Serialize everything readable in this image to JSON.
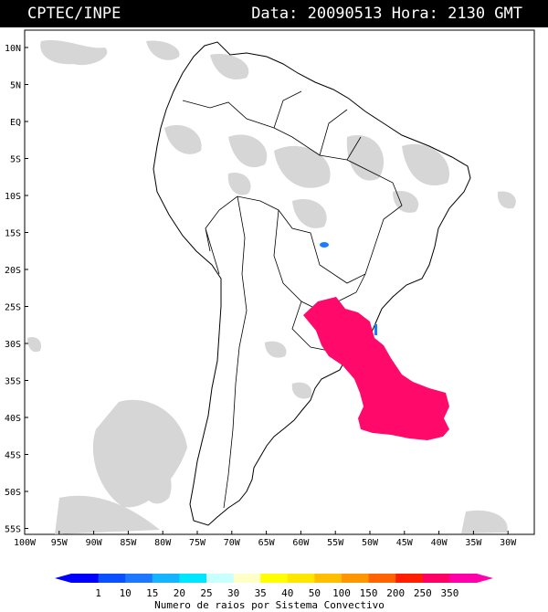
{
  "header": {
    "agency": "CPTEC/INPE",
    "datetime": "Data: 20090513 Hora: 2130 GMT"
  },
  "map": {
    "lat_labels": [
      "10N",
      "5N",
      "EQ",
      "5S",
      "10S",
      "15S",
      "20S",
      "25S",
      "30S",
      "35S",
      "40S",
      "45S",
      "50S",
      "55S"
    ],
    "lon_labels": [
      "100W",
      "95W",
      "90W",
      "85W",
      "80W",
      "75W",
      "70W",
      "65W",
      "60W",
      "55W",
      "50W",
      "45W",
      "40W",
      "35W",
      "30W"
    ],
    "region_shown": "South America",
    "storm_color": "#ff0a6a",
    "small_cell_color": "#1a7cff",
    "cloud_color": "#c8c8c8"
  },
  "legend": {
    "values": [
      "1",
      "10",
      "15",
      "20",
      "25",
      "30",
      "35",
      "40",
      "50",
      "100",
      "150",
      "200",
      "250",
      "350"
    ],
    "colors": [
      "#0000ff",
      "#0a50ff",
      "#1e78ff",
      "#14b4ff",
      "#00e6ff",
      "#c8ffff",
      "#ffffc8",
      "#ffff00",
      "#ffe600",
      "#ffbe00",
      "#ff9600",
      "#ff6400",
      "#ff1e00",
      "#ff0064",
      "#ff00aa"
    ],
    "caption": "Numero de raios por Sistema Convectivo"
  }
}
